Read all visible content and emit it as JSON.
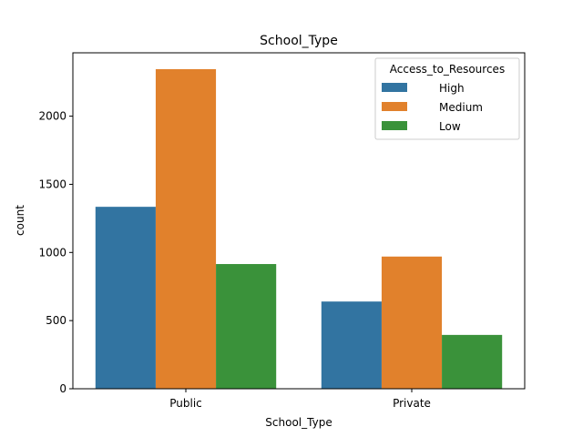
{
  "chart_data": {
    "type": "bar",
    "title": "School_Type",
    "xlabel": "School_Type",
    "ylabel": "count",
    "categories": [
      "Public",
      "Private"
    ],
    "series": [
      {
        "name": "High",
        "values": [
          1335,
          640
        ],
        "color": "#3274a1"
      },
      {
        "name": "Medium",
        "values": [
          2345,
          970
        ],
        "color": "#e1812c"
      },
      {
        "name": "Low",
        "values": [
          915,
          395
        ],
        "color": "#3a923a"
      }
    ],
    "ylim": [
      0,
      2465
    ],
    "yticks": [
      0,
      500,
      1000,
      1500,
      2000
    ],
    "legend": {
      "title": "Access_to_Resources",
      "position": "upper-right"
    },
    "grid": false
  }
}
